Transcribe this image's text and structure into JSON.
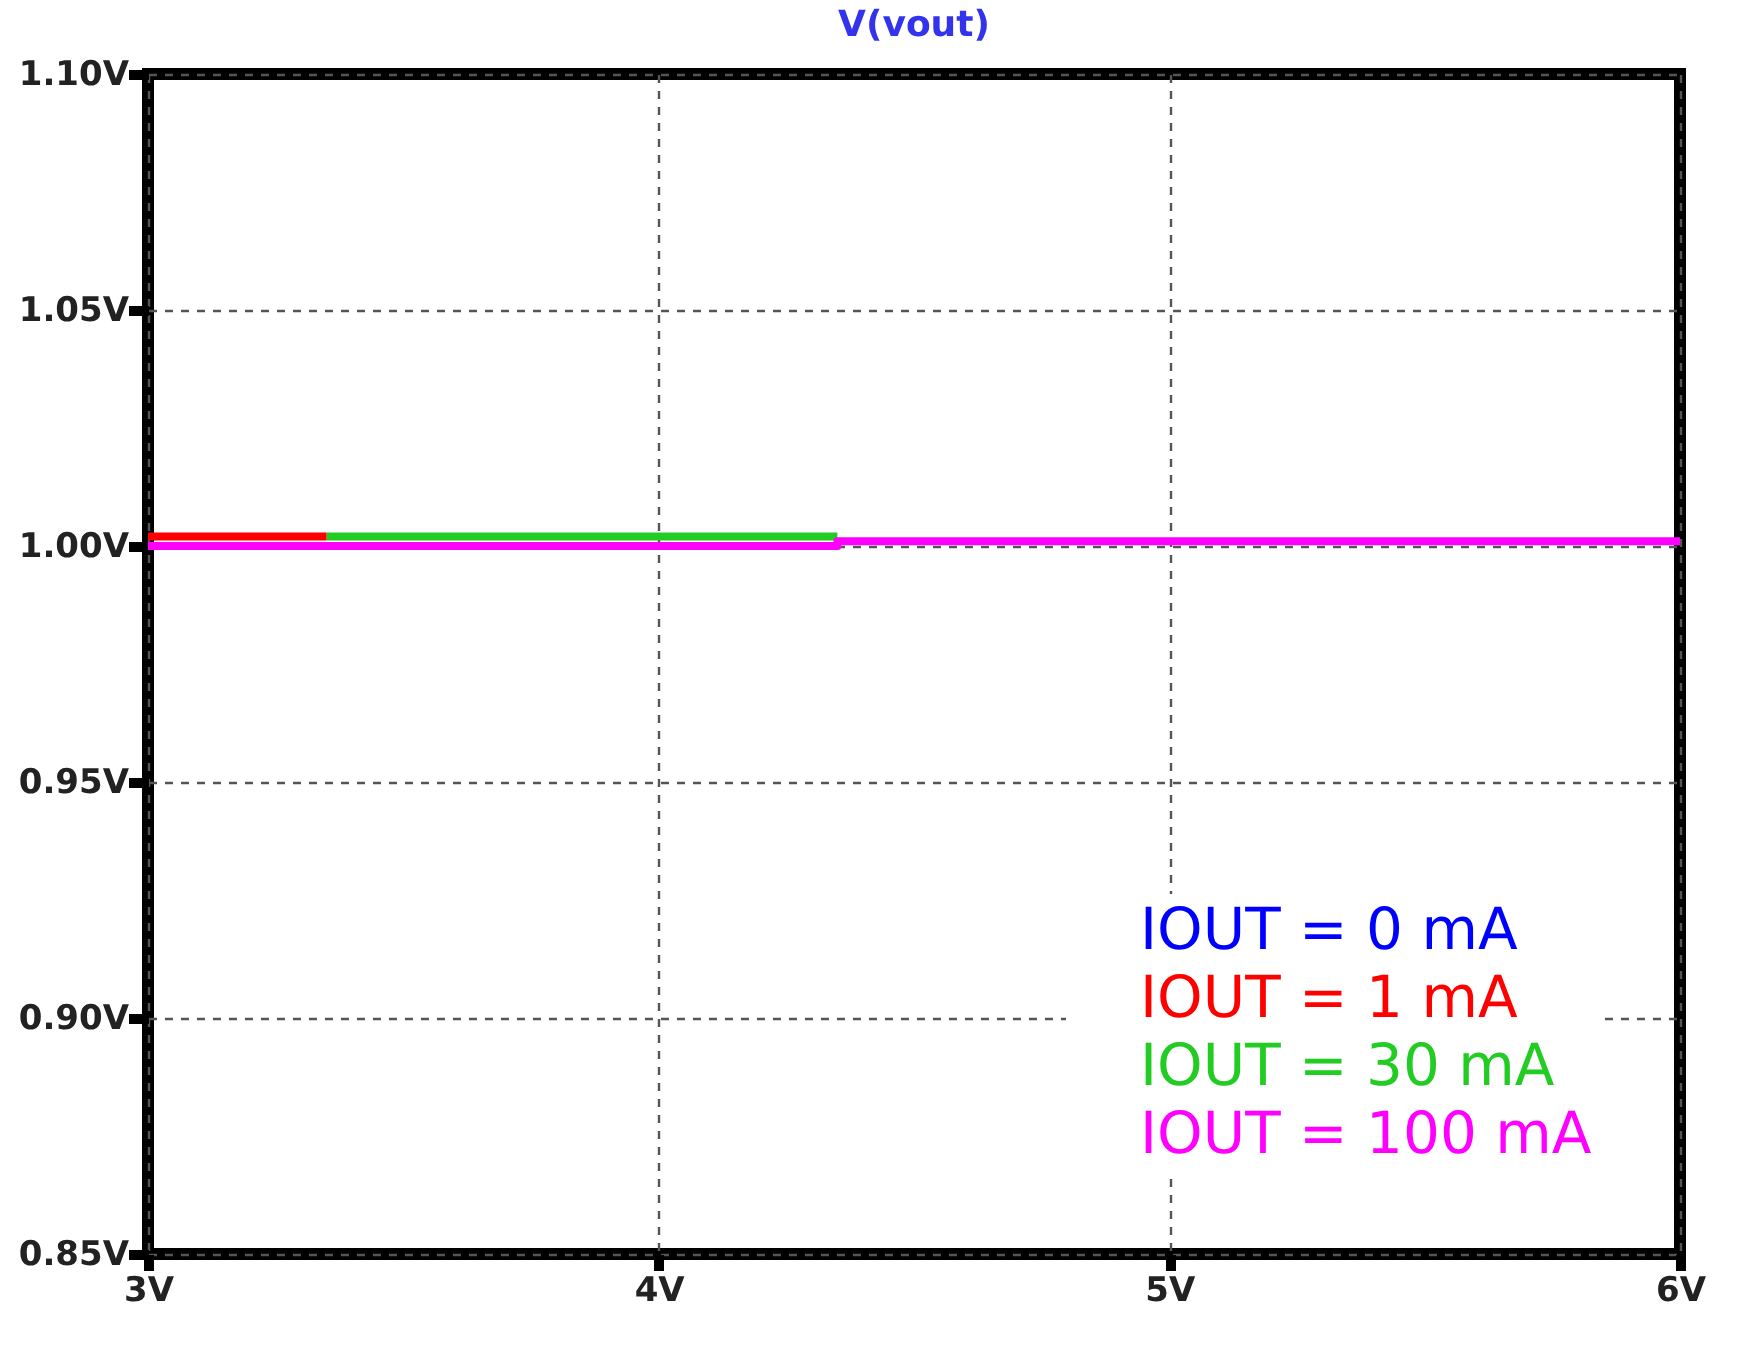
{
  "chart_data": {
    "type": "line",
    "title": "V(vout)",
    "series": [
      {
        "name": "IOUT = 0 mA",
        "color": "#0000ff"
      },
      {
        "name": "IOUT = 1 mA",
        "color": "#ff0000",
        "x": [
          3,
          3.35
        ],
        "values": [
          1.002,
          1.002
        ]
      },
      {
        "name": "IOUT = 30 mA",
        "color": "#22cc22",
        "x": [
          3.35,
          4.35
        ],
        "values": [
          1.002,
          1.002
        ]
      },
      {
        "name": "IOUT = 100 mA",
        "color": "#ff00ff",
        "x": [
          3,
          4.35,
          4.35,
          6
        ],
        "values": [
          1.0,
          1.0,
          1.001,
          1.001
        ]
      }
    ],
    "xlim": [
      3,
      6
    ],
    "xticks": [
      {
        "value": 3,
        "label": "3V"
      },
      {
        "value": 4,
        "label": "4V"
      },
      {
        "value": 5,
        "label": "5V"
      },
      {
        "value": 6,
        "label": "6V"
      }
    ],
    "ylim": [
      0.85,
      1.1
    ],
    "yticks": [
      {
        "value": 0.85,
        "label": "0.85V"
      },
      {
        "value": 0.9,
        "label": "0.90V"
      },
      {
        "value": 0.95,
        "label": "0.95V"
      },
      {
        "value": 1.0,
        "label": "1.00V"
      },
      {
        "value": 1.05,
        "label": "1.05V"
      },
      {
        "value": 1.1,
        "label": "1.10V"
      }
    ],
    "grid": true,
    "legend": "bottom right",
    "marker": "none",
    "line_style": "solid"
  }
}
